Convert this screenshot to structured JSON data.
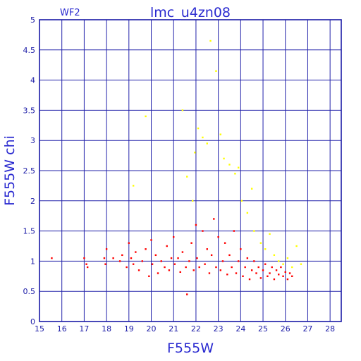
{
  "chart_data": {
    "type": "scatter",
    "title": "lmc_u4zn08",
    "corner_label": "WF2",
    "xlabel": "F555W",
    "ylabel": "F555W chi",
    "xlim": [
      15,
      28.5
    ],
    "ylim": [
      0,
      5
    ],
    "x_ticks": [
      15,
      16,
      17,
      18,
      19,
      20,
      21,
      22,
      23,
      24,
      25,
      26,
      27,
      28
    ],
    "y_ticks": [
      0,
      0.5,
      1,
      1.5,
      2,
      2.5,
      3,
      3.5,
      4,
      4.5,
      5
    ],
    "y_tick_labels": [
      "0",
      "0.5",
      "1",
      "1.5",
      "2",
      "2.5",
      "3",
      "3.5",
      "4",
      "4.5",
      "5"
    ],
    "grid": true,
    "colors": {
      "frame": "#1a1aa6",
      "grid": "#2222aa",
      "main_series": "#ff0000",
      "secondary_series": "#ffff00",
      "title": "#2a2ad0"
    },
    "series": [
      {
        "color": "#ff0000",
        "values": [
          [
            15.55,
            1.05
          ],
          [
            17.0,
            1.05
          ],
          [
            17.1,
            0.95
          ],
          [
            17.15,
            0.9
          ],
          [
            17.9,
            1.05
          ],
          [
            17.95,
            0.95
          ],
          [
            18.0,
            1.2
          ],
          [
            18.3,
            1.05
          ],
          [
            18.6,
            1.0
          ],
          [
            18.7,
            1.1
          ],
          [
            18.9,
            0.9
          ],
          [
            19.0,
            1.3
          ],
          [
            19.1,
            1.05
          ],
          [
            19.2,
            0.95
          ],
          [
            19.3,
            1.15
          ],
          [
            19.45,
            0.85
          ],
          [
            19.6,
            1.0
          ],
          [
            19.75,
            1.2
          ],
          [
            19.9,
            0.75
          ],
          [
            20.0,
            1.35
          ],
          [
            20.05,
            0.95
          ],
          [
            20.2,
            1.1
          ],
          [
            20.3,
            0.8
          ],
          [
            20.45,
            1.0
          ],
          [
            20.6,
            0.9
          ],
          [
            20.7,
            1.25
          ],
          [
            20.8,
            0.85
          ],
          [
            20.9,
            1.05
          ],
          [
            21.0,
            1.4
          ],
          [
            21.05,
            0.95
          ],
          [
            21.2,
            1.05
          ],
          [
            21.3,
            0.82
          ],
          [
            21.4,
            1.15
          ],
          [
            21.55,
            0.9
          ],
          [
            21.6,
            0.45
          ],
          [
            21.7,
            1.0
          ],
          [
            21.8,
            1.3
          ],
          [
            21.9,
            0.85
          ],
          [
            22.0,
            1.6
          ],
          [
            22.05,
            1.05
          ],
          [
            22.15,
            0.9
          ],
          [
            22.3,
            1.5
          ],
          [
            22.4,
            0.95
          ],
          [
            22.5,
            1.2
          ],
          [
            22.6,
            0.8
          ],
          [
            22.7,
            1.1
          ],
          [
            22.8,
            1.7
          ],
          [
            22.9,
            0.9
          ],
          [
            23.0,
            1.4
          ],
          [
            23.1,
            0.85
          ],
          [
            23.2,
            1.0
          ],
          [
            23.3,
            1.3
          ],
          [
            23.4,
            0.78
          ],
          [
            23.5,
            1.1
          ],
          [
            23.6,
            0.9
          ],
          [
            23.7,
            1.5
          ],
          [
            23.8,
            0.8
          ],
          [
            23.9,
            1.0
          ],
          [
            24.0,
            1.2
          ],
          [
            24.1,
            0.75
          ],
          [
            24.2,
            0.9
          ],
          [
            24.3,
            1.05
          ],
          [
            24.4,
            0.7
          ],
          [
            24.5,
            0.85
          ],
          [
            24.6,
            1.0
          ],
          [
            24.7,
            0.8
          ],
          [
            24.8,
            0.9
          ],
          [
            24.9,
            0.72
          ],
          [
            25.0,
            0.85
          ],
          [
            25.1,
            0.95
          ],
          [
            25.2,
            0.75
          ],
          [
            25.3,
            0.8
          ],
          [
            25.4,
            0.9
          ],
          [
            25.5,
            0.7
          ],
          [
            25.6,
            0.85
          ],
          [
            25.7,
            0.78
          ],
          [
            25.8,
            0.9
          ],
          [
            25.9,
            0.75
          ],
          [
            26.0,
            0.82
          ],
          [
            26.1,
            0.7
          ],
          [
            26.2,
            0.8
          ],
          [
            26.3,
            0.75
          ]
        ]
      },
      {
        "color": "#ffff00",
        "values": [
          [
            19.2,
            2.25
          ],
          [
            19.75,
            3.4
          ],
          [
            21.4,
            3.5
          ],
          [
            21.6,
            2.4
          ],
          [
            21.85,
            2.0
          ],
          [
            21.95,
            2.8
          ],
          [
            22.1,
            3.2
          ],
          [
            22.3,
            3.05
          ],
          [
            22.5,
            2.95
          ],
          [
            22.65,
            4.65
          ],
          [
            22.9,
            4.15
          ],
          [
            23.1,
            3.1
          ],
          [
            23.25,
            2.7
          ],
          [
            23.5,
            2.6
          ],
          [
            23.75,
            2.45
          ],
          [
            23.9,
            2.55
          ],
          [
            24.05,
            2.0
          ],
          [
            24.3,
            1.8
          ],
          [
            24.5,
            2.2
          ],
          [
            24.6,
            1.5
          ],
          [
            24.9,
            1.3
          ],
          [
            25.1,
            1.2
          ],
          [
            25.3,
            1.45
          ],
          [
            25.5,
            1.1
          ],
          [
            25.7,
            1.0
          ],
          [
            25.9,
            0.95
          ],
          [
            26.1,
            1.05
          ],
          [
            26.3,
            0.9
          ],
          [
            26.5,
            1.25
          ],
          [
            26.7,
            0.95
          ]
        ]
      }
    ]
  }
}
